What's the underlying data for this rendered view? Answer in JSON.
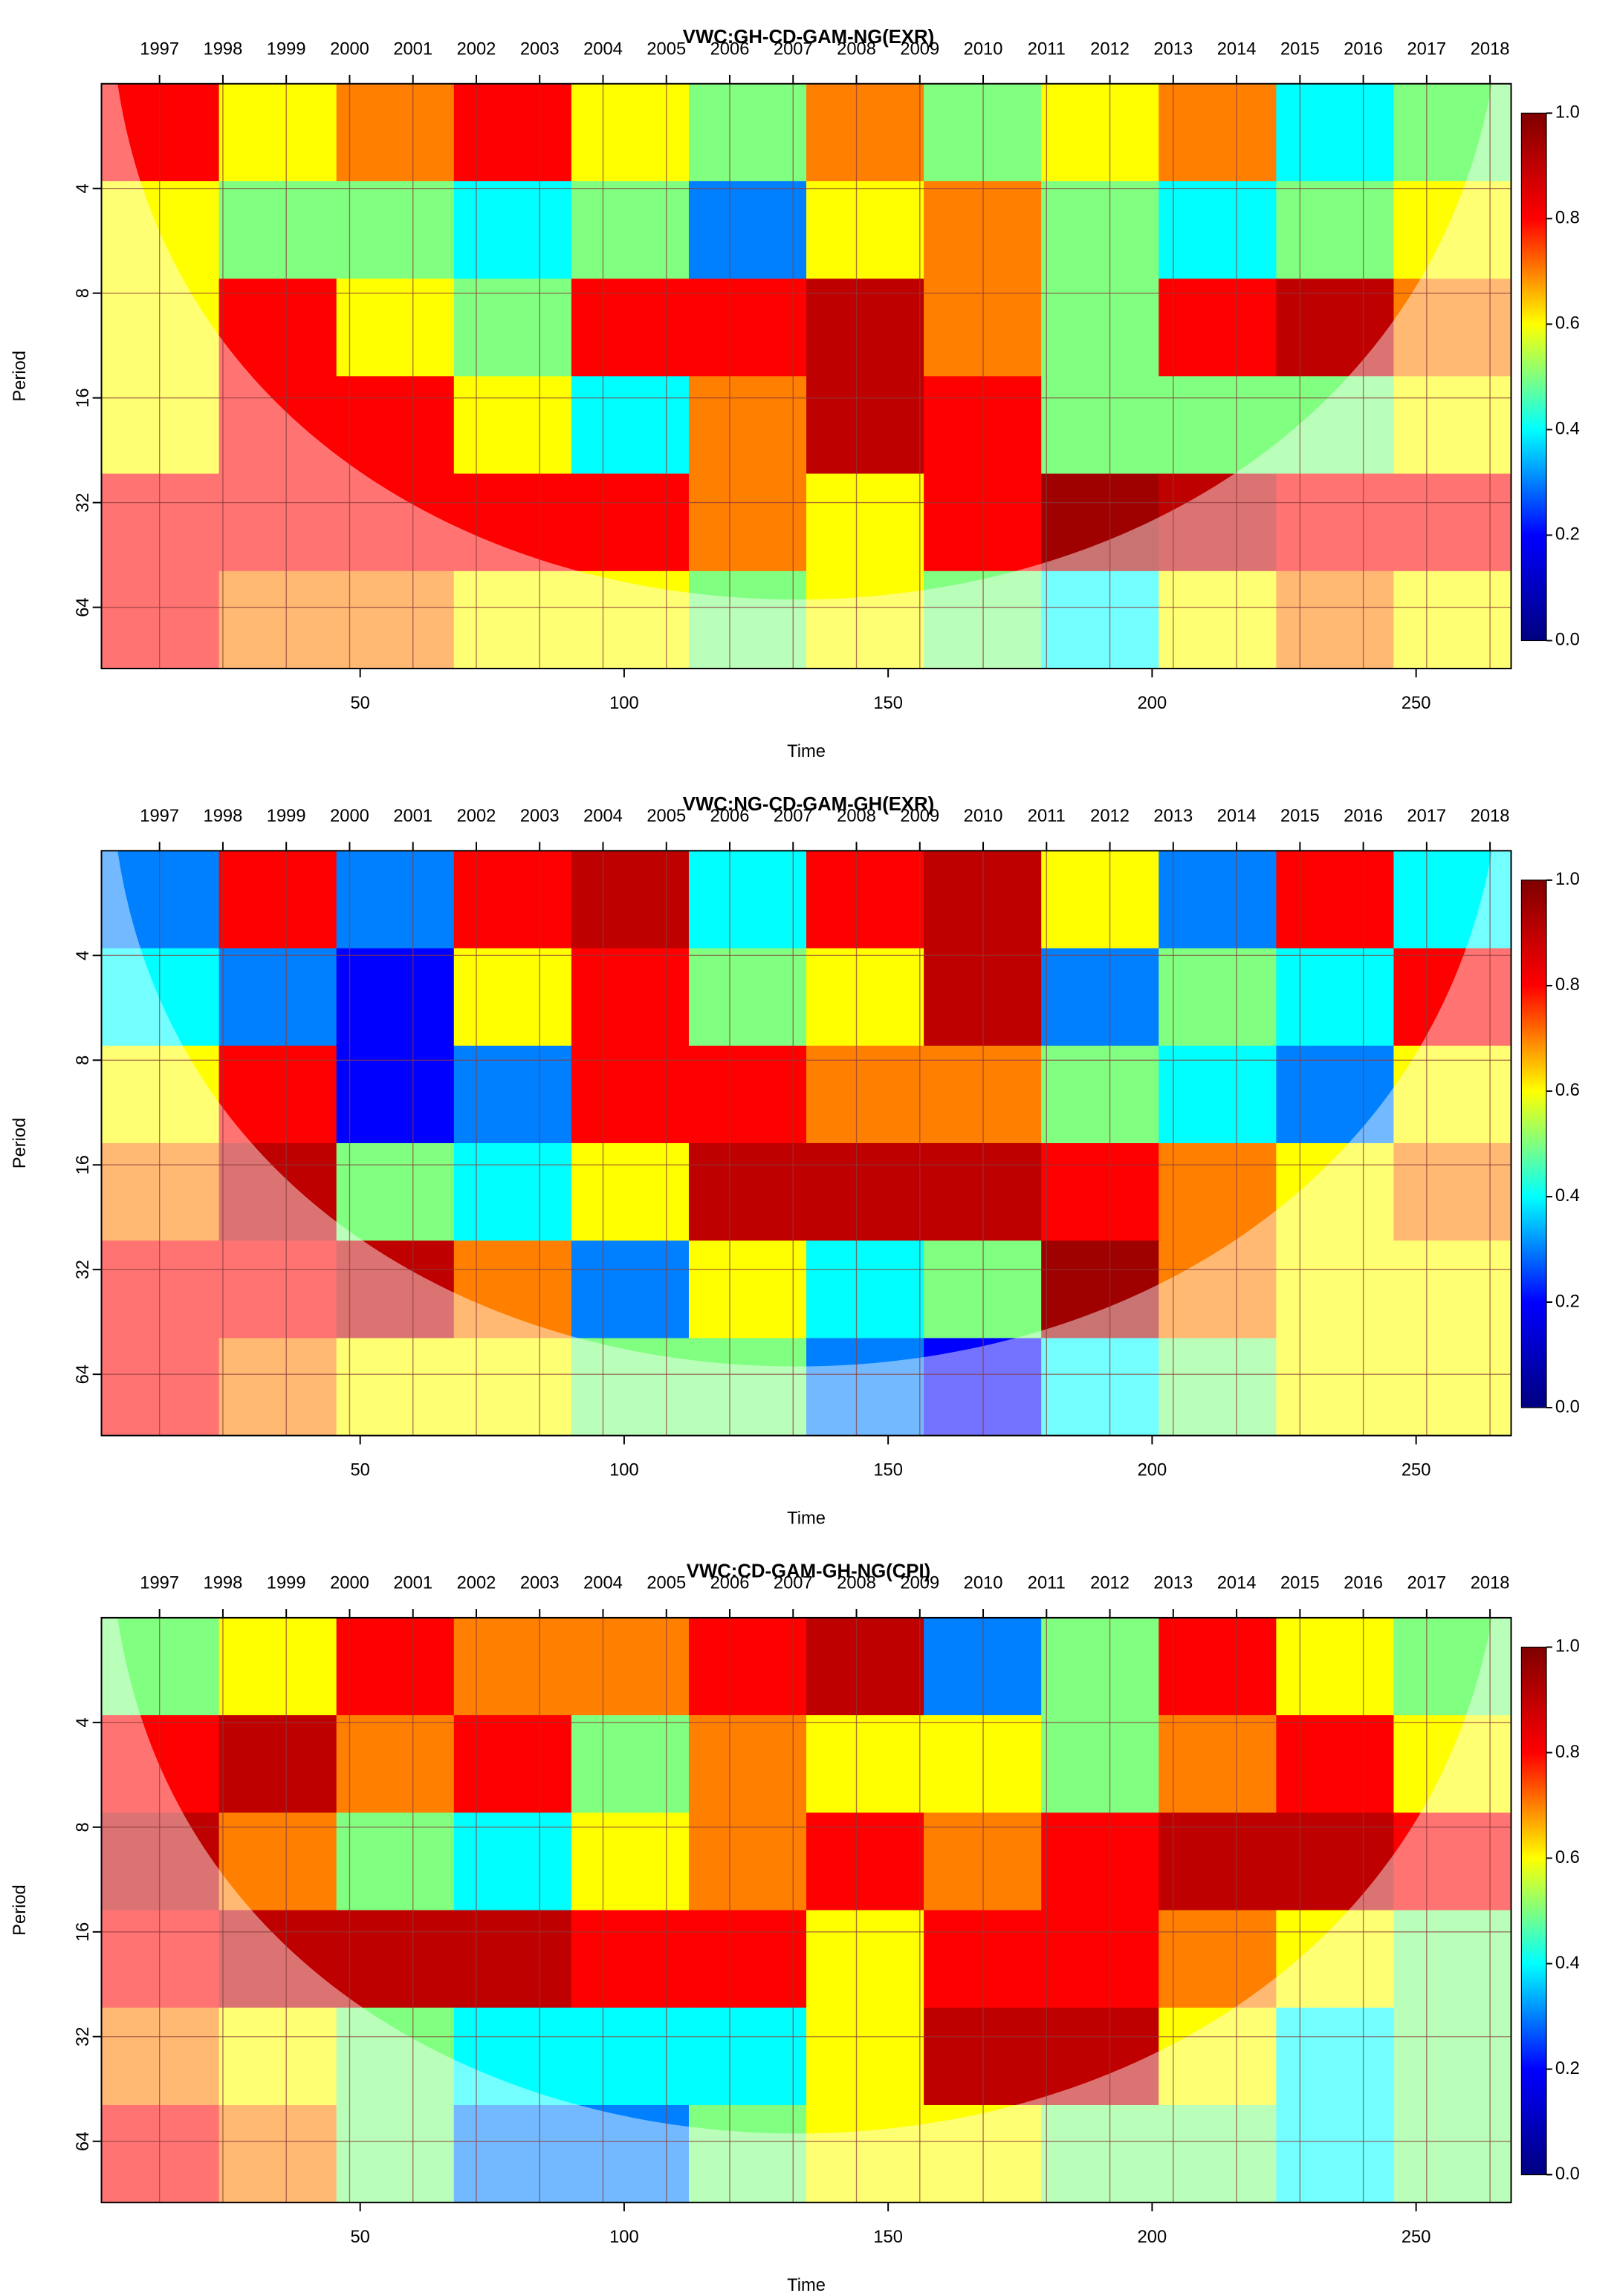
{
  "chart_data": [
    {
      "type": "heatmap",
      "title": "VWC:GH-CD-GAM-NG(EXR)",
      "xlabel": "Time",
      "ylabel": "Period",
      "xlim": [
        1,
        268
      ],
      "ylim": [
        2,
        96
      ],
      "ylog": true,
      "grid": true,
      "xticks": [
        50,
        100,
        150,
        200,
        250
      ],
      "yticks": [
        4,
        8,
        16,
        32,
        64
      ],
      "x2ticks": [
        {
          "value": 12,
          "label": "1997"
        },
        {
          "value": 24,
          "label": "1998"
        },
        {
          "value": 36,
          "label": "1999"
        },
        {
          "value": 48,
          "label": "2000"
        },
        {
          "value": 60,
          "label": "2001"
        },
        {
          "value": 72,
          "label": "2002"
        },
        {
          "value": 84,
          "label": "2003"
        },
        {
          "value": 96,
          "label": "2004"
        },
        {
          "value": 108,
          "label": "2005"
        },
        {
          "value": 120,
          "label": "2006"
        },
        {
          "value": 132,
          "label": "2007"
        },
        {
          "value": 144,
          "label": "2008"
        },
        {
          "value": 156,
          "label": "2009"
        },
        {
          "value": 168,
          "label": "2010"
        },
        {
          "value": 180,
          "label": "2011"
        },
        {
          "value": 192,
          "label": "2012"
        },
        {
          "value": 204,
          "label": "2013"
        },
        {
          "value": 216,
          "label": "2014"
        },
        {
          "value": 228,
          "label": "2015"
        },
        {
          "value": 240,
          "label": "2016"
        },
        {
          "value": 252,
          "label": "2017"
        },
        {
          "value": 264,
          "label": "2018"
        }
      ],
      "colormap": [
        "#00007f",
        "#0000ff",
        "#00ffff",
        "#ffff00",
        "#ff0000",
        "#7f0000"
      ],
      "zlim": [
        0,
        1
      ],
      "zticks": [
        {
          "value": 0,
          "label": "0.0"
        },
        {
          "value": 0.2,
          "label": "0.2"
        },
        {
          "value": 0.4,
          "label": "0.4"
        },
        {
          "value": 0.6,
          "label": "0.6"
        },
        {
          "value": 0.8,
          "label": "0.8"
        },
        {
          "value": 1,
          "label": "1.0"
        }
      ],
      "z": [
        [
          0.8,
          0.6,
          0.7,
          0.8,
          0.6,
          0.5,
          0.7,
          0.5,
          0.6,
          0.7,
          0.4,
          0.5
        ],
        [
          0.6,
          0.5,
          0.5,
          0.4,
          0.5,
          0.3,
          0.6,
          0.7,
          0.5,
          0.4,
          0.5,
          0.6
        ],
        [
          0.6,
          0.8,
          0.6,
          0.5,
          0.8,
          0.8,
          0.9,
          0.7,
          0.5,
          0.8,
          0.9,
          0.7
        ],
        [
          0.6,
          0.8,
          0.8,
          0.6,
          0.4,
          0.7,
          0.9,
          0.8,
          0.5,
          0.5,
          0.5,
          0.6
        ],
        [
          0.8,
          0.8,
          0.8,
          0.8,
          0.8,
          0.7,
          0.6,
          0.8,
          0.95,
          0.9,
          0.8,
          0.8
        ],
        [
          0.8,
          0.7,
          0.7,
          0.6,
          0.6,
          0.5,
          0.6,
          0.5,
          0.4,
          0.6,
          0.7,
          0.6
        ]
      ]
    },
    {
      "type": "heatmap",
      "title": "VWC:NG-CD-GAM-GH(EXR)",
      "xlabel": "Time",
      "ylabel": "Period",
      "xlim": [
        1,
        268
      ],
      "ylim": [
        2,
        96
      ],
      "ylog": true,
      "grid": true,
      "xticks": [
        50,
        100,
        150,
        200,
        250
      ],
      "yticks": [
        4,
        8,
        16,
        32,
        64
      ],
      "x2ticks": [
        {
          "value": 12,
          "label": "1997"
        },
        {
          "value": 24,
          "label": "1998"
        },
        {
          "value": 36,
          "label": "1999"
        },
        {
          "value": 48,
          "label": "2000"
        },
        {
          "value": 60,
          "label": "2001"
        },
        {
          "value": 72,
          "label": "2002"
        },
        {
          "value": 84,
          "label": "2003"
        },
        {
          "value": 96,
          "label": "2004"
        },
        {
          "value": 108,
          "label": "2005"
        },
        {
          "value": 120,
          "label": "2006"
        },
        {
          "value": 132,
          "label": "2007"
        },
        {
          "value": 144,
          "label": "2008"
        },
        {
          "value": 156,
          "label": "2009"
        },
        {
          "value": 168,
          "label": "2010"
        },
        {
          "value": 180,
          "label": "2011"
        },
        {
          "value": 192,
          "label": "2012"
        },
        {
          "value": 204,
          "label": "2013"
        },
        {
          "value": 216,
          "label": "2014"
        },
        {
          "value": 228,
          "label": "2015"
        },
        {
          "value": 240,
          "label": "2016"
        },
        {
          "value": 252,
          "label": "2017"
        },
        {
          "value": 264,
          "label": "2018"
        }
      ],
      "colormap": [
        "#00007f",
        "#0000ff",
        "#00ffff",
        "#ffff00",
        "#ff0000",
        "#7f0000"
      ],
      "zlim": [
        0,
        1
      ],
      "zticks": [
        {
          "value": 0,
          "label": "0.0"
        },
        {
          "value": 0.2,
          "label": "0.2"
        },
        {
          "value": 0.4,
          "label": "0.4"
        },
        {
          "value": 0.6,
          "label": "0.6"
        },
        {
          "value": 0.8,
          "label": "0.8"
        },
        {
          "value": 1,
          "label": "1.0"
        }
      ],
      "z": [
        [
          0.3,
          0.8,
          0.3,
          0.8,
          0.9,
          0.4,
          0.8,
          0.9,
          0.6,
          0.3,
          0.8,
          0.4
        ],
        [
          0.4,
          0.3,
          0.2,
          0.6,
          0.8,
          0.5,
          0.6,
          0.9,
          0.3,
          0.5,
          0.4,
          0.8
        ],
        [
          0.6,
          0.8,
          0.2,
          0.3,
          0.8,
          0.8,
          0.7,
          0.7,
          0.5,
          0.4,
          0.3,
          0.6
        ],
        [
          0.7,
          0.9,
          0.5,
          0.4,
          0.6,
          0.9,
          0.9,
          0.9,
          0.8,
          0.7,
          0.6,
          0.7
        ],
        [
          0.8,
          0.8,
          0.9,
          0.7,
          0.3,
          0.6,
          0.4,
          0.5,
          0.95,
          0.7,
          0.6,
          0.6
        ],
        [
          0.8,
          0.7,
          0.6,
          0.6,
          0.5,
          0.5,
          0.3,
          0.2,
          0.4,
          0.5,
          0.6,
          0.6
        ]
      ]
    },
    {
      "type": "heatmap",
      "title": "VWC:CD-GAM-GH-NG(CPI)",
      "xlabel": "Time",
      "ylabel": "Period",
      "xlim": [
        1,
        268
      ],
      "ylim": [
        2,
        96
      ],
      "ylog": true,
      "grid": true,
      "xticks": [
        50,
        100,
        150,
        200,
        250
      ],
      "yticks": [
        4,
        8,
        16,
        32,
        64
      ],
      "x2ticks": [
        {
          "value": 12,
          "label": "1997"
        },
        {
          "value": 24,
          "label": "1998"
        },
        {
          "value": 36,
          "label": "1999"
        },
        {
          "value": 48,
          "label": "2000"
        },
        {
          "value": 60,
          "label": "2001"
        },
        {
          "value": 72,
          "label": "2002"
        },
        {
          "value": 84,
          "label": "2003"
        },
        {
          "value": 96,
          "label": "2004"
        },
        {
          "value": 108,
          "label": "2005"
        },
        {
          "value": 120,
          "label": "2006"
        },
        {
          "value": 132,
          "label": "2007"
        },
        {
          "value": 144,
          "label": "2008"
        },
        {
          "value": 156,
          "label": "2009"
        },
        {
          "value": 168,
          "label": "2010"
        },
        {
          "value": 180,
          "label": "2011"
        },
        {
          "value": 192,
          "label": "2012"
        },
        {
          "value": 204,
          "label": "2013"
        },
        {
          "value": 216,
          "label": "2014"
        },
        {
          "value": 228,
          "label": "2015"
        },
        {
          "value": 240,
          "label": "2016"
        },
        {
          "value": 252,
          "label": "2017"
        },
        {
          "value": 264,
          "label": "2018"
        }
      ],
      "colormap": [
        "#00007f",
        "#0000ff",
        "#00ffff",
        "#ffff00",
        "#ff0000",
        "#7f0000"
      ],
      "zlim": [
        0,
        1
      ],
      "zticks": [
        {
          "value": 0,
          "label": "0.0"
        },
        {
          "value": 0.2,
          "label": "0.2"
        },
        {
          "value": 0.4,
          "label": "0.4"
        },
        {
          "value": 0.6,
          "label": "0.6"
        },
        {
          "value": 0.8,
          "label": "0.8"
        },
        {
          "value": 1,
          "label": "1.0"
        }
      ],
      "z": [
        [
          0.5,
          0.6,
          0.8,
          0.7,
          0.7,
          0.8,
          0.9,
          0.3,
          0.5,
          0.8,
          0.6,
          0.5
        ],
        [
          0.8,
          0.9,
          0.7,
          0.8,
          0.5,
          0.7,
          0.6,
          0.6,
          0.5,
          0.7,
          0.8,
          0.6
        ],
        [
          0.9,
          0.7,
          0.5,
          0.4,
          0.6,
          0.7,
          0.8,
          0.7,
          0.8,
          0.9,
          0.9,
          0.8
        ],
        [
          0.8,
          0.9,
          0.9,
          0.9,
          0.8,
          0.8,
          0.6,
          0.8,
          0.8,
          0.7,
          0.6,
          0.5
        ],
        [
          0.7,
          0.6,
          0.5,
          0.4,
          0.4,
          0.4,
          0.6,
          0.9,
          0.9,
          0.6,
          0.4,
          0.5
        ],
        [
          0.8,
          0.7,
          0.5,
          0.3,
          0.3,
          0.5,
          0.6,
          0.6,
          0.5,
          0.5,
          0.4,
          0.5
        ]
      ]
    }
  ]
}
